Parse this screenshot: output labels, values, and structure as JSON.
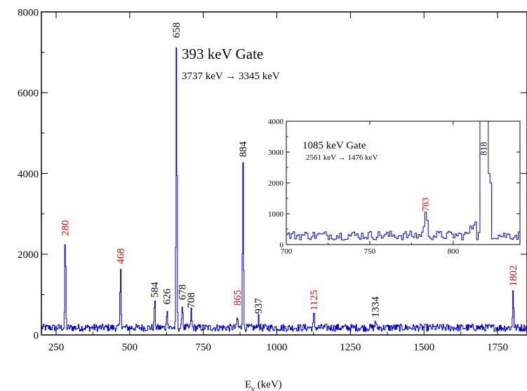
{
  "colors": {
    "spectrum": "#0000dd",
    "axis": "#000000",
    "label_black": "#000000",
    "label_red": "#ee0000"
  },
  "chart_data": [
    {
      "type": "line",
      "title": "393 keV Gate",
      "subtitle": "3737 keV → 3345 keV",
      "xlabel_main": "E",
      "xlabel_sub": "γ",
      "xlabel_unit": " (keV)",
      "xlim": [
        200,
        1850
      ],
      "ylim": [
        0,
        8000
      ],
      "xticks": [
        250,
        500,
        750,
        1000,
        1250,
        1500,
        1750
      ],
      "yticks": [
        0,
        2000,
        4000,
        6000,
        8000
      ],
      "background_level": 200,
      "peaks": [
        {
          "x": 280,
          "y": 2350,
          "label": "280",
          "color": "red"
        },
        {
          "x": 468,
          "y": 1650,
          "label": "468",
          "color": "red"
        },
        {
          "x": 584,
          "y": 820,
          "label": "584",
          "color": "black"
        },
        {
          "x": 626,
          "y": 650,
          "label": "626",
          "color": "black"
        },
        {
          "x": 658,
          "y": 7250,
          "label": "658",
          "color": "black"
        },
        {
          "x": 678,
          "y": 760,
          "label": "678",
          "color": "black"
        },
        {
          "x": 708,
          "y": 560,
          "label": "708",
          "color": "black"
        },
        {
          "x": 865,
          "y": 380,
          "label": "865",
          "color": "red"
        },
        {
          "x": 884,
          "y": 4300,
          "label": "884",
          "color": "black"
        },
        {
          "x": 937,
          "y": 420,
          "label": "937",
          "color": "black"
        },
        {
          "x": 1125,
          "y": 500,
          "label": "1125",
          "color": "red"
        },
        {
          "x": 1334,
          "y": 330,
          "label": "1334",
          "color": "black"
        },
        {
          "x": 1802,
          "y": 1100,
          "label": "1802",
          "color": "red"
        }
      ]
    },
    {
      "type": "line",
      "title": "1085 keV Gate",
      "subtitle": "2561 keV → 1476 keV",
      "xlim": [
        700,
        840
      ],
      "ylim": [
        0,
        4000
      ],
      "xticks": [
        700,
        750,
        800
      ],
      "yticks": [
        0,
        1000,
        2000,
        3000,
        4000
      ],
      "background_level": 330,
      "peaks": [
        {
          "x": 783,
          "y": 900,
          "label": "783",
          "color": "red"
        },
        {
          "x": 818,
          "y": 4000,
          "label": "818",
          "color": "black"
        }
      ]
    }
  ]
}
